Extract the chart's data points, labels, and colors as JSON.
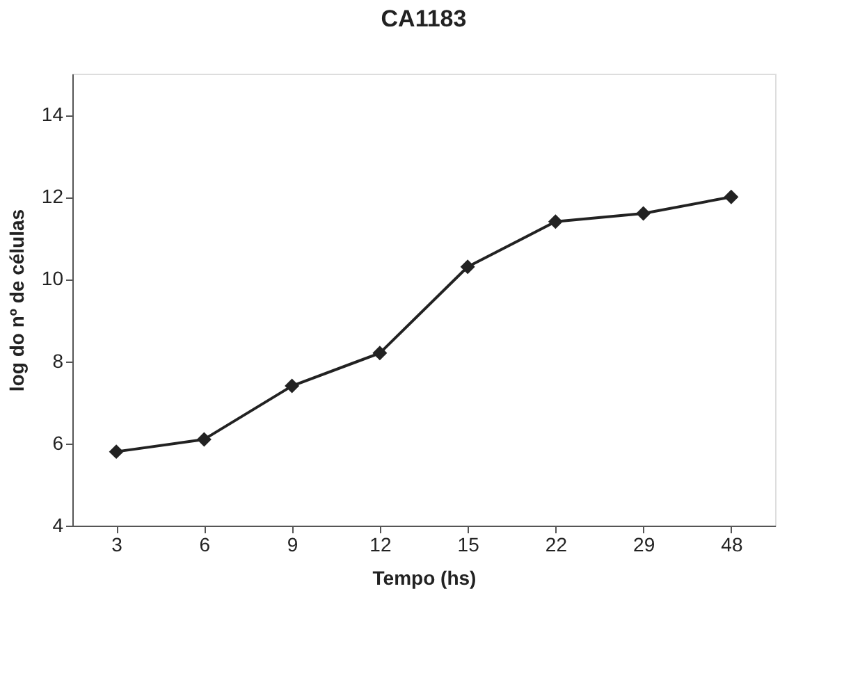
{
  "chart_data": {
    "type": "line",
    "title": "CA1183",
    "xlabel": "Tempo (hs)",
    "ylabel": "log do nº de células",
    "categories": [
      "3",
      "6",
      "9",
      "12",
      "15",
      "22",
      "29",
      "48"
    ],
    "series": [
      {
        "color": "#222222",
        "values": [
          5.8,
          6.1,
          7.4,
          8.2,
          10.3,
          11.4,
          11.6,
          12.0
        ]
      }
    ],
    "ylim": [
      4,
      15
    ],
    "yticks": [
      4,
      6,
      8,
      10,
      12,
      14
    ],
    "marker": "diamond",
    "line_style": "solid",
    "grid": false
  }
}
